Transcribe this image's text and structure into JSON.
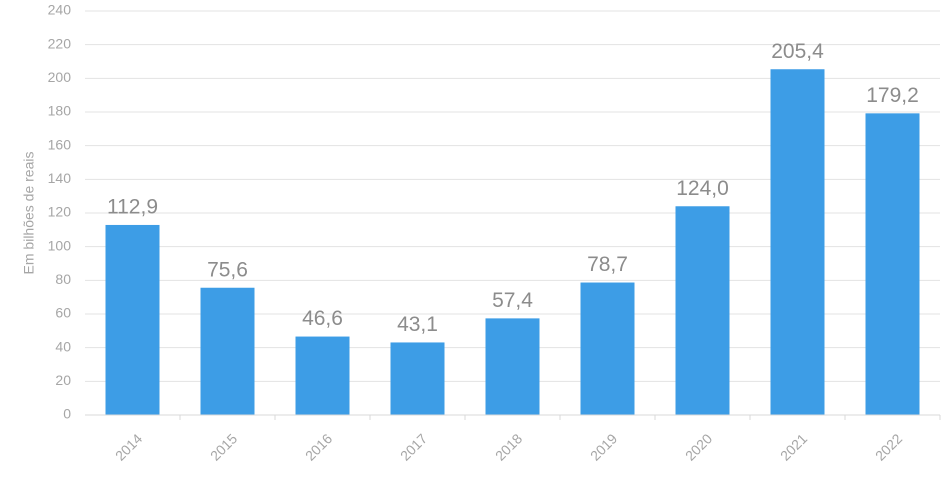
{
  "chart_data": {
    "type": "bar",
    "y_label": "Em bilhões de reais",
    "categories": [
      "2014",
      "2015",
      "2016",
      "2017",
      "2018",
      "2019",
      "2020",
      "2021",
      "2022"
    ],
    "values": [
      112.9,
      75.6,
      46.6,
      43.1,
      57.4,
      78.7,
      124.0,
      205.4,
      179.2
    ],
    "value_labels": [
      "112,9",
      "75,6",
      "46,6",
      "43,1",
      "57,4",
      "78,7",
      "124,0",
      "205,4",
      "179,2"
    ],
    "color": "#3d9de6",
    "ylim": [
      0,
      240
    ],
    "yticks": [
      0,
      20,
      40,
      60,
      80,
      100,
      120,
      140,
      160,
      180,
      200,
      220,
      240
    ],
    "grid": true
  }
}
